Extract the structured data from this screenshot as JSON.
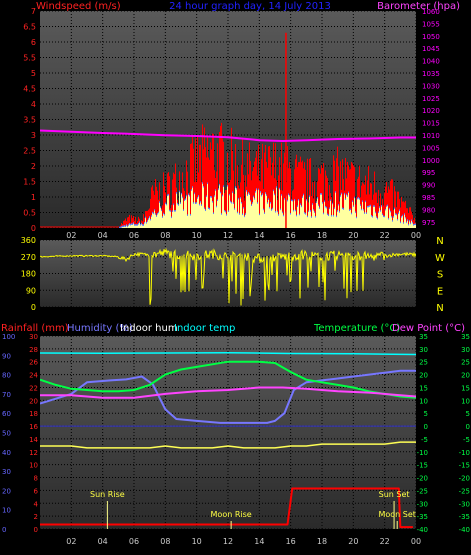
{
  "colors": {
    "background": "#000000",
    "plot_top": "#5a5a5a",
    "plot_bottom": "#2a2a2a",
    "grid": "#000000",
    "windspeed": "#ff0000",
    "wind_avg": "#5a7fff",
    "wind_gust_fill": "#ffffa0",
    "barometer": "#ff00ff",
    "direction": "#ffff00",
    "rain": "#ff0000",
    "humidity": "#7777ff",
    "indoor_hum": "#ffff55",
    "indoor_temp": "#00ffff",
    "temperature": "#00ff44",
    "dewpoint": "#ff44ff",
    "title": "#2222ff",
    "axis_text_hum": "#6666ff",
    "axis_text_temp": "#00ff44",
    "axis_text_rain": "#ff2222",
    "axis_text_dir": "#ffff00"
  },
  "chart_data": [
    {
      "type": "line",
      "title": "24 hour graph day, 14 July 2013",
      "left_label": "Windspeed (m/s)",
      "right_label": "Barometer (hpa)",
      "x_ticks": [
        "02",
        "04",
        "06",
        "08",
        "10",
        "12",
        "14",
        "16",
        "18",
        "20",
        "22",
        "00"
      ],
      "y_left_ticks": [
        "0",
        "0.5",
        "1",
        "1.5",
        "2",
        "2.5",
        "3",
        "3.5",
        "4",
        "4.5",
        "5",
        "5.5",
        "6",
        "6.5",
        "7"
      ],
      "y_right_ticks": [
        "975",
        "980",
        "985",
        "990",
        "995",
        "1000",
        "1005",
        "1010",
        "1015",
        "1020",
        "1025",
        "1030",
        "1035",
        "1040",
        "1045",
        "1050",
        "1055",
        "1060"
      ],
      "ylim_left": [
        0,
        7
      ],
      "ylim_right": [
        972.5,
        1060
      ],
      "xlim_hours": [
        0,
        24
      ],
      "series": [
        {
          "name": "Barometer (hpa)",
          "x": [
            0,
            2,
            4,
            6,
            8,
            10,
            12,
            14,
            15.5,
            17,
            19,
            21,
            23,
            24
          ],
          "y": [
            1011.8,
            1011.3,
            1010.8,
            1010.4,
            1009.9,
            1009.6,
            1009.1,
            1007.9,
            1007.6,
            1007.9,
            1008.4,
            1008.6,
            1009.0,
            1009.0
          ]
        }
      ],
      "wind_profile": {
        "x": [
          0,
          5,
          5.6,
          6.5,
          7.2,
          8.0,
          9.0,
          10.0,
          11.0,
          12.0,
          13.0,
          14.0,
          15.0,
          16.0,
          17.0,
          18.0,
          19.0,
          20.0,
          21.0,
          22.0,
          23.0,
          23.6,
          24
        ],
        "peak": [
          0.05,
          0.08,
          0.4,
          0.3,
          1.4,
          1.6,
          2.2,
          2.8,
          3.2,
          2.9,
          2.5,
          2.4,
          2.6,
          2.3,
          2.0,
          2.1,
          2.3,
          2.0,
          1.8,
          1.6,
          1.1,
          0.6,
          0.4
        ],
        "avg": [
          0,
          0,
          0.1,
          0.15,
          0.5,
          0.8,
          0.9,
          1.0,
          1.1,
          1.0,
          0.9,
          0.9,
          1.0,
          0.9,
          0.8,
          0.8,
          0.9,
          0.8,
          0.7,
          0.6,
          0.4,
          0.2,
          0.1
        ],
        "spike_hour": 15.7,
        "spike_value": 6.3
      }
    },
    {
      "type": "scatter",
      "title": "",
      "y_left_ticks": [
        "0",
        "90",
        "180",
        "270",
        "360"
      ],
      "y_right_ticks": [
        "N",
        "W",
        "S",
        "E",
        "N"
      ],
      "ylim": [
        0,
        360
      ],
      "xlim_hours": [
        0,
        24
      ],
      "series": [
        {
          "name": "Wind direction",
          "x": [
            0,
            2,
            4,
            5,
            5.5,
            6,
            7,
            8,
            9,
            10,
            11,
            12,
            13,
            14,
            15,
            16,
            17,
            18,
            19,
            20,
            21,
            22,
            23,
            24
          ],
          "y": [
            270,
            275,
            275,
            270,
            255,
            285,
            280,
            290,
            280,
            275,
            285,
            270,
            275,
            260,
            265,
            275,
            280,
            270,
            280,
            275,
            270,
            275,
            285,
            280
          ]
        }
      ]
    },
    {
      "type": "line",
      "title": "",
      "legend_labels": [
        "Rainfall (mm)",
        "Humidity (%)",
        "Indoor hum",
        "Indoor temp",
        "Temperature (°C)",
        "Dew Point (°C)"
      ],
      "x_ticks": [
        "02",
        "04",
        "06",
        "08",
        "10",
        "12",
        "14",
        "16",
        "18",
        "20",
        "22",
        "00"
      ],
      "y_hum_ticks": [
        "0",
        "10",
        "20",
        "30",
        "40",
        "50",
        "60",
        "70",
        "80",
        "90",
        "100"
      ],
      "y_rain_ticks": [
        "0",
        "2",
        "4",
        "6",
        "8",
        "10",
        "12",
        "14",
        "16",
        "18",
        "20",
        "22",
        "24",
        "26",
        "28",
        "30"
      ],
      "y_temp_ticks": [
        "-40",
        "-35",
        "-30",
        "-25",
        "-20",
        "-15",
        "-10",
        "-5",
        "0",
        "5",
        "10",
        "15",
        "20",
        "25",
        "30",
        "35"
      ],
      "ylim_hum": [
        0,
        100
      ],
      "ylim_temp": [
        -40,
        35
      ],
      "xlim_hours": [
        0,
        24
      ],
      "annotations": [
        {
          "label": "Sun Rise",
          "hour": 4.3
        },
        {
          "label": "Moon Rise",
          "hour": 12.2
        },
        {
          "label": "Sun Set",
          "hour": 22.6
        },
        {
          "label": "Moon Set",
          "hour": 22.8
        }
      ],
      "series": [
        {
          "name": "Rainfall (mm)",
          "x": [
            0,
            15.8,
            15.95,
            16.1,
            22.9,
            23.0,
            23.8
          ],
          "y": [
            0.7,
            0.7,
            3.5,
            6.3,
            6.3,
            0.3,
            0.3
          ]
        },
        {
          "name": "Humidity (%)",
          "x": [
            0,
            2,
            3,
            4.5,
            5.5,
            6.5,
            7.2,
            8,
            8.7,
            10,
            11.5,
            13,
            14.5,
            15,
            15.6,
            16.2,
            17,
            18,
            19,
            20,
            21,
            22,
            23,
            24
          ],
          "y": [
            65,
            70,
            76,
            77,
            77.5,
            79,
            75,
            62,
            57,
            56,
            55,
            55,
            55,
            56,
            60,
            72,
            76,
            77,
            78,
            79,
            80,
            81,
            82,
            82
          ]
        },
        {
          "name": "Indoor hum",
          "x": [
            0,
            1,
            2,
            3,
            4,
            5,
            6,
            7,
            8,
            9,
            10,
            11,
            12,
            13,
            14,
            15,
            16,
            17,
            18,
            19,
            20,
            21,
            22,
            23,
            24
          ],
          "y": [
            43,
            43,
            43,
            42,
            42,
            42,
            42,
            42,
            43,
            42,
            42,
            42,
            43,
            42,
            42,
            42,
            43,
            43,
            44,
            44,
            44,
            44,
            44,
            45,
            45
          ]
        },
        {
          "name": "Indoor temp",
          "x": [
            0,
            4,
            8,
            12,
            16,
            20,
            24
          ],
          "y": [
            28.4,
            28.3,
            28.4,
            28.5,
            28.2,
            28.1,
            27.8
          ]
        },
        {
          "name": "Temperature (°C)",
          "x": [
            0,
            1,
            2,
            3,
            4,
            5,
            6,
            7,
            8,
            9,
            10,
            11,
            12,
            13,
            14,
            15,
            16,
            17,
            18,
            19,
            20,
            21,
            22,
            23,
            24
          ],
          "y": [
            18,
            16,
            14.5,
            14,
            13.5,
            13.5,
            14,
            16,
            20,
            22,
            23,
            24,
            25,
            25,
            25,
            24.5,
            21,
            18,
            17,
            16,
            15,
            13.5,
            12.5,
            11.5,
            11
          ]
        },
        {
          "name": "Dew Point (°C)",
          "x": [
            0,
            2,
            4,
            6,
            8,
            10,
            12,
            14,
            15.5,
            17,
            19,
            21,
            23,
            24
          ],
          "y": [
            12,
            12,
            11,
            11,
            12.5,
            13.5,
            14,
            15,
            15,
            14.5,
            13.5,
            13,
            12,
            11.5
          ]
        }
      ]
    }
  ]
}
